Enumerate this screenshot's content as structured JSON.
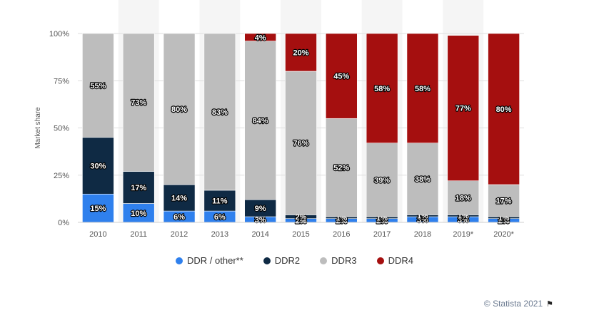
{
  "chart_data": {
    "type": "bar",
    "stacked": true,
    "ylabel": "Market share",
    "yticks": [
      "0%",
      "25%",
      "50%",
      "75%",
      "100%"
    ],
    "ylim": [
      0,
      100
    ],
    "categories": [
      "2010",
      "2011",
      "2012",
      "2013",
      "2014",
      "2015",
      "2016",
      "2017",
      "2018",
      "2019*",
      "2020*"
    ],
    "series": [
      {
        "name": "DDR / other**",
        "color": "#2f80ed",
        "values": [
          15,
          10,
          6,
          6,
          3,
          2,
          2,
          2,
          3,
          3,
          2
        ],
        "labels": [
          "15%",
          "10%",
          "6%",
          "6%",
          "3%",
          "2%",
          "2%",
          "2%",
          "3%",
          "3%",
          "2%"
        ]
      },
      {
        "name": "DDR2",
        "color": "#0f2a44",
        "values": [
          30,
          17,
          14,
          11,
          9,
          2,
          1,
          1,
          1,
          1,
          1
        ],
        "labels": [
          "30%",
          "17%",
          "14%",
          "11%",
          "9%",
          "2%",
          "1%",
          "1%",
          "1%",
          "1%",
          "1%"
        ]
      },
      {
        "name": "DDR3",
        "color": "#bdbdbd",
        "values": [
          55,
          73,
          80,
          83,
          84,
          76,
          52,
          39,
          38,
          18,
          17
        ],
        "labels": [
          "55%",
          "73%",
          "80%",
          "83%",
          "84%",
          "76%",
          "52%",
          "39%",
          "38%",
          "18%",
          "17%"
        ]
      },
      {
        "name": "DDR4",
        "color": "#a50f0f",
        "values": [
          0,
          0,
          0,
          0,
          4,
          20,
          45,
          58,
          58,
          77,
          80
        ],
        "labels": [
          "",
          "",
          "",
          "",
          "4%",
          "20%",
          "45%",
          "58%",
          "58%",
          "77%",
          "80%"
        ]
      }
    ]
  },
  "credit": "© Statista 2021"
}
